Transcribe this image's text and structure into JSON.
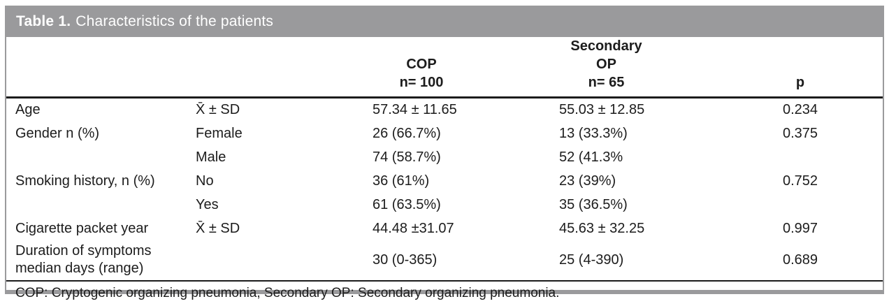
{
  "title": {
    "label": "Table 1.",
    "text": "Characteristics of the patients"
  },
  "table": {
    "columns": [
      {
        "id": "characteristic",
        "header": ""
      },
      {
        "id": "measure",
        "header": ""
      },
      {
        "id": "cop",
        "header_line1": "COP",
        "header_line2": "n= 100"
      },
      {
        "id": "secondary_op",
        "header_line1": "Secondary OP",
        "header_line2": "n= 65"
      },
      {
        "id": "p",
        "header": "p"
      }
    ],
    "rows": [
      {
        "label": "Age",
        "measure": "X̄ ± SD",
        "cop": "57.34 ± 11.65",
        "secondary_op": "55.03 ± 12.85",
        "p": "0.234"
      },
      {
        "label": "Gender n (%)",
        "measure": "Female",
        "cop": "26 (66.7%)",
        "secondary_op": "13 (33.3%)",
        "p": "0.375"
      },
      {
        "label": "",
        "measure": "Male",
        "cop": "74 (58.7%)",
        "secondary_op": "52 (41.3%",
        "p": ""
      },
      {
        "label": "Smoking history, n (%)",
        "measure": "No",
        "cop": "36 (61%)",
        "secondary_op": "23 (39%)",
        "p": "0.752"
      },
      {
        "label": "",
        "measure": "Yes",
        "cop": "61 (63.5%)",
        "secondary_op": "35 (36.5%)",
        "p": ""
      },
      {
        "label": "Cigarette packet year",
        "measure": "X̄ ± SD",
        "cop": "44.48 ±31.07",
        "secondary_op": "45.63 ± 32.25",
        "p": "0.997"
      },
      {
        "label": "Duration of symptoms\nmedian days (range)",
        "measure": "",
        "cop": "30 (0-365)",
        "secondary_op": "25 (4-390)",
        "p": "0.689"
      }
    ],
    "footnote": "COP: Cryptogenic organizing pneumonia, Secondary OP: Secondary organizing pneumonia."
  },
  "colors": {
    "header_bar": "#9a9a9c",
    "rule_black": "#1c1c1c",
    "text": "#1c1c1c",
    "background": "#ffffff"
  }
}
